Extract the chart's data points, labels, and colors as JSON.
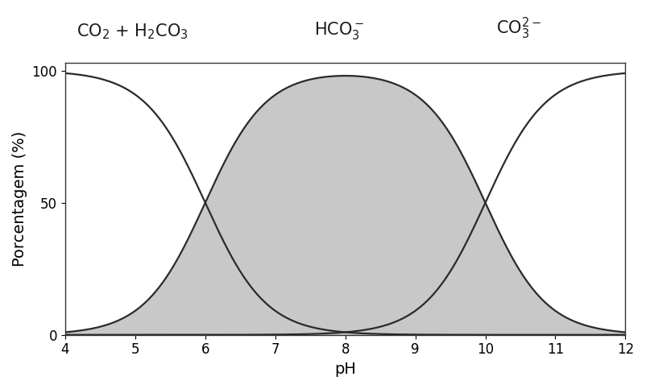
{
  "pKa1": 6.0,
  "pKa2": 10.0,
  "pH_min": 4,
  "pH_max": 12,
  "ylim": [
    0,
    103
  ],
  "yticks": [
    0,
    50,
    100
  ],
  "xticks": [
    4,
    5,
    6,
    7,
    8,
    9,
    10,
    11,
    12
  ],
  "xlabel": "pH",
  "ylabel": "Porcentagem (%)",
  "line_color": "#2a2a2a",
  "fill_color": "#c8c8c8",
  "fill_alpha": 1.0,
  "line_width": 1.6,
  "label_co2": "CO$_2$ + H$_2$CO$_3$",
  "label_hco3": "HCO$_3^-$",
  "label_co3": "CO$_3^{2-}$",
  "label_fontsize": 15,
  "axis_fontsize": 14,
  "tick_fontsize": 12,
  "background_color": "#ffffff",
  "spine_color": "#333333"
}
